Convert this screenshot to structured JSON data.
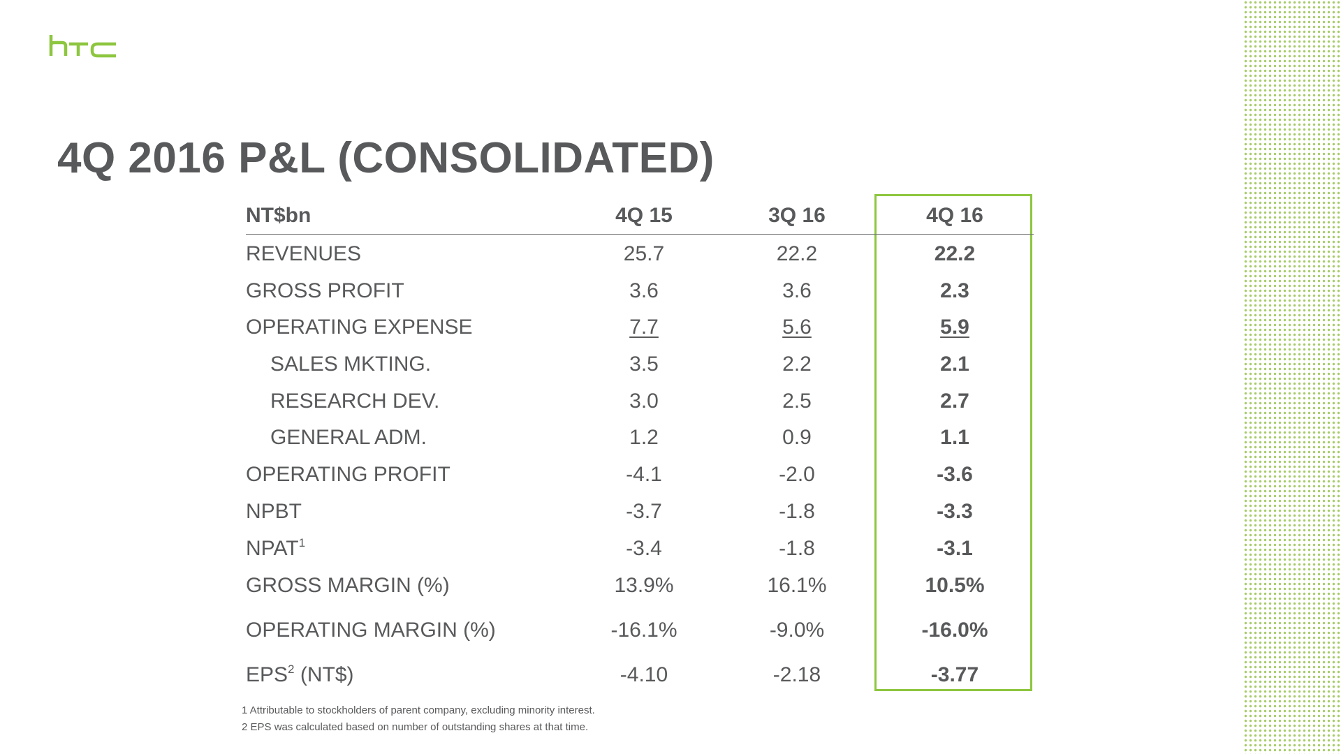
{
  "brand": {
    "logo_text": "htc",
    "accent_color": "#8dc63f",
    "text_color": "#58595b"
  },
  "title": "4Q 2016 P&L (CONSOLIDATED)",
  "table": {
    "headers": [
      "NT$bn",
      "4Q 15",
      "3Q 16",
      "4Q 16"
    ],
    "rows": [
      {
        "label": "REVENUES",
        "values": [
          "25.7",
          "22.2",
          "22.2"
        ]
      },
      {
        "label": "GROSS PROFIT",
        "values": [
          "3.6",
          "3.6",
          "2.3"
        ]
      },
      {
        "label": "OPERATING EXPENSE",
        "values": [
          "7.7",
          "5.6",
          "5.9"
        ]
      },
      {
        "label": "SALES MKTING.",
        "values": [
          "3.5",
          "2.2",
          "2.1"
        ]
      },
      {
        "label": "RESEARCH DEV.",
        "values": [
          "3.0",
          "2.5",
          "2.7"
        ]
      },
      {
        "label": "GENERAL ADM.",
        "values": [
          "1.2",
          "0.9",
          "1.1"
        ]
      },
      {
        "label": "OPERATING PROFIT",
        "values": [
          "-4.1",
          "-2.0",
          "-3.6"
        ]
      },
      {
        "label": "NPBT",
        "values": [
          "-3.7",
          "-1.8",
          "-3.3"
        ]
      },
      {
        "label": "NPAT",
        "sup": "1",
        "values": [
          "-3.4",
          "-1.8",
          "-3.1"
        ]
      },
      {
        "label": "GROSS MARGIN (%)",
        "values": [
          "13.9%",
          "16.1%",
          "10.5%"
        ]
      },
      {
        "label": "OPERATING MARGIN (%)",
        "values": [
          "-16.1%",
          "-9.0%",
          "-16.0%"
        ]
      },
      {
        "label": "EPS",
        "sup": "2",
        "label_suffix": " (NT$)",
        "values": [
          "-4.10",
          "-2.18",
          "-3.77"
        ]
      }
    ]
  },
  "footnotes": [
    "1 Attributable to stockholders of parent company, excluding minority interest.",
    "2 EPS was calculated based on number of outstanding shares at that time."
  ]
}
